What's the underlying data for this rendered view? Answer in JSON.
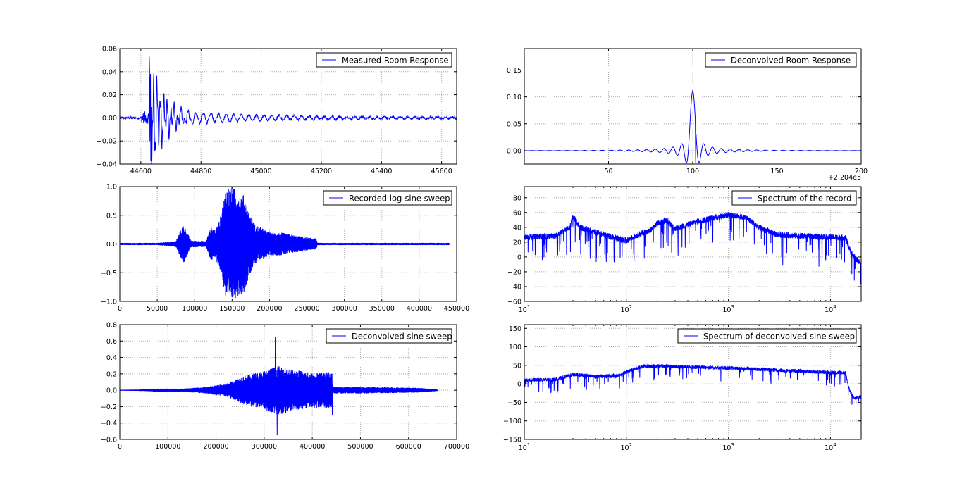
{
  "figure": {
    "background": "#ffffff",
    "line_color": "#0000ff",
    "grid_color": "#b0b0b0"
  },
  "chart_data": [
    {
      "id": "measured-room-response",
      "type": "line",
      "xscale": "linear",
      "title": "",
      "xlabel": "",
      "ylabel": "",
      "xlim": [
        44530,
        45650
      ],
      "ylim": [
        -0.04,
        0.06
      ],
      "xticks": [
        44600,
        44800,
        45000,
        45200,
        45400,
        45600
      ],
      "xtick_labels": [
        "44600",
        "44800",
        "45000",
        "45200",
        "45400",
        "45600"
      ],
      "yticks": [
        -0.04,
        -0.02,
        0.0,
        0.02,
        0.04,
        0.06
      ],
      "ytick_labels": [
        "−0.04",
        "−0.02",
        "0.00",
        "0.02",
        "0.04",
        "0.06"
      ],
      "grid": true,
      "legend_position": "top-right",
      "series": [
        {
          "name": "Measured Room Response",
          "shape": "room_impulse",
          "t0": 44628,
          "peak": 0.053,
          "trough": -0.037,
          "noise": 0.001
        }
      ]
    },
    {
      "id": "deconvolved-room-response",
      "type": "line",
      "xscale": "linear",
      "title": "",
      "xlabel": "",
      "ylabel": "",
      "x_offset_label": "+2.204e5",
      "xlim": [
        0,
        200
      ],
      "ylim": [
        -0.025,
        0.19
      ],
      "xticks": [
        50,
        100,
        150,
        200
      ],
      "xtick_labels": [
        "50",
        "100",
        "150",
        "200"
      ],
      "yticks": [
        0.0,
        0.05,
        0.1,
        0.15
      ],
      "ytick_labels": [
        "0.00",
        "0.05",
        "0.10",
        "0.15"
      ],
      "grid": true,
      "legend_position": "top-right",
      "series": [
        {
          "name": "Deconvolved Room Response",
          "shape": "sinc",
          "center": 100,
          "peak": 0.112,
          "trough": -0.022
        }
      ]
    },
    {
      "id": "recorded-log-sine-sweep",
      "type": "line",
      "xscale": "linear",
      "title": "",
      "xlabel": "",
      "ylabel": "",
      "xlim": [
        0,
        450000
      ],
      "ylim": [
        -1.0,
        1.0
      ],
      "xticks": [
        0,
        50000,
        100000,
        150000,
        200000,
        250000,
        300000,
        350000,
        400000,
        450000
      ],
      "xtick_labels": [
        "0",
        "50000",
        "100000",
        "150000",
        "200000",
        "250000",
        "300000",
        "350000",
        "400000",
        "450000"
      ],
      "yticks": [
        -1.0,
        -0.5,
        0.0,
        0.5,
        1.0
      ],
      "ytick_labels": [
        "−1.0",
        "−0.5",
        "0.0",
        "0.5",
        "1.0"
      ],
      "grid": true,
      "legend_position": "top-right",
      "series": [
        {
          "name": "Recorded log-sine sweep",
          "shape": "envelope",
          "envelope": [
            [
              0,
              0.02
            ],
            [
              50000,
              0.02
            ],
            [
              75000,
              0.05
            ],
            [
              85000,
              0.35
            ],
            [
              95000,
              0.06
            ],
            [
              115000,
              0.05
            ],
            [
              122000,
              0.3
            ],
            [
              128000,
              0.25
            ],
            [
              135000,
              0.5
            ],
            [
              142000,
              1.0
            ],
            [
              150000,
              1.0
            ],
            [
              158000,
              0.9
            ],
            [
              166000,
              0.85
            ],
            [
              173000,
              0.55
            ],
            [
              180000,
              0.35
            ],
            [
              200000,
              0.2
            ],
            [
              215000,
              0.2
            ],
            [
              245000,
              0.12
            ],
            [
              262000,
              0.1
            ],
            [
              264000,
              0.02
            ],
            [
              440000,
              0.02
            ]
          ]
        }
      ]
    },
    {
      "id": "spectrum-of-the-record",
      "type": "line",
      "xscale": "log",
      "title": "",
      "xlabel": "",
      "ylabel": "",
      "xlim": [
        10,
        20000
      ],
      "ylim": [
        -60,
        95
      ],
      "xticks": [
        10,
        100,
        1000,
        10000
      ],
      "xtick_labels": [
        [
          "10",
          "1"
        ],
        [
          "10",
          "2"
        ],
        [
          "10",
          "3"
        ],
        [
          "10",
          "4"
        ]
      ],
      "yticks": [
        -60,
        -40,
        -20,
        0,
        20,
        40,
        60,
        80
      ],
      "ytick_labels": [
        "−60",
        "−40",
        "−20",
        "0",
        "20",
        "40",
        "60",
        "80"
      ],
      "grid": true,
      "legend_position": "top-right",
      "series": [
        {
          "name": "Spectrum of the record",
          "shape": "spectrum",
          "envelope": [
            [
              10,
              27
            ],
            [
              20,
              28
            ],
            [
              28,
              40
            ],
            [
              30,
              55
            ],
            [
              35,
              40
            ],
            [
              60,
              30
            ],
            [
              100,
              22
            ],
            [
              140,
              32
            ],
            [
              170,
              35
            ],
            [
              200,
              45
            ],
            [
              250,
              50
            ],
            [
              300,
              38
            ],
            [
              500,
              48
            ],
            [
              1000,
              57
            ],
            [
              1500,
              53
            ],
            [
              2000,
              40
            ],
            [
              3000,
              30
            ],
            [
              6000,
              28
            ],
            [
              14000,
              26
            ],
            [
              16000,
              5
            ],
            [
              20000,
              -10
            ]
          ],
          "spread": 8
        }
      ]
    },
    {
      "id": "deconvolved-sine-sweep",
      "type": "line",
      "xscale": "linear",
      "title": "",
      "xlabel": "",
      "ylabel": "",
      "xlim": [
        0,
        700000
      ],
      "ylim": [
        -0.6,
        0.8
      ],
      "xticks": [
        0,
        100000,
        200000,
        300000,
        400000,
        500000,
        600000,
        700000
      ],
      "xtick_labels": [
        "0",
        "100000",
        "200000",
        "300000",
        "400000",
        "500000",
        "600000",
        "700000"
      ],
      "yticks": [
        -0.6,
        -0.4,
        -0.2,
        0.0,
        0.2,
        0.4,
        0.6,
        0.8
      ],
      "ytick_labels": [
        "−0.6",
        "−0.4",
        "−0.2",
        "0.0",
        "0.2",
        "0.4",
        "0.6",
        "0.8"
      ],
      "grid": true,
      "legend_position": "top-right",
      "series": [
        {
          "name": "Deconvolved sine sweep",
          "shape": "envelope",
          "envelope": [
            [
              0,
              0.005
            ],
            [
              50000,
              0.01
            ],
            [
              80000,
              0.02
            ],
            [
              130000,
              0.02
            ],
            [
              180000,
              0.04
            ],
            [
              220000,
              0.08
            ],
            [
              260000,
              0.18
            ],
            [
              300000,
              0.24
            ],
            [
              330000,
              0.3
            ],
            [
              360000,
              0.25
            ],
            [
              400000,
              0.22
            ],
            [
              441000,
              0.22
            ],
            [
              442000,
              0.04
            ],
            [
              500000,
              0.04
            ],
            [
              620000,
              0.03
            ],
            [
              660000,
              0.01
            ]
          ],
          "spikes": [
            [
              323000,
              0.65
            ],
            [
              327000,
              -0.55
            ],
            [
              441000,
              0.2
            ],
            [
              441500,
              -0.3
            ]
          ]
        }
      ]
    },
    {
      "id": "spectrum-of-deconvolved-sine-sweep",
      "type": "line",
      "xscale": "log",
      "title": "",
      "xlabel": "",
      "ylabel": "",
      "xlim": [
        10,
        20000
      ],
      "ylim": [
        -150,
        160
      ],
      "xticks": [
        10,
        100,
        1000,
        10000
      ],
      "xtick_labels": [
        [
          "10",
          "1"
        ],
        [
          "10",
          "2"
        ],
        [
          "10",
          "3"
        ],
        [
          "10",
          "4"
        ]
      ],
      "yticks": [
        -150,
        -100,
        -50,
        0,
        50,
        100,
        150
      ],
      "ytick_labels": [
        "−150",
        "−100",
        "−50",
        "0",
        "50",
        "100",
        "150"
      ],
      "grid": true,
      "legend_position": "top-right",
      "series": [
        {
          "name": "Spectrum of deconvolved sine sweep",
          "shape": "spectrum",
          "envelope": [
            [
              10,
              10
            ],
            [
              20,
              12
            ],
            [
              30,
              25
            ],
            [
              50,
              20
            ],
            [
              80,
              22
            ],
            [
              120,
              40
            ],
            [
              150,
              48
            ],
            [
              200,
              48
            ],
            [
              400,
              46
            ],
            [
              1000,
              43
            ],
            [
              3000,
              37
            ],
            [
              8000,
              32
            ],
            [
              14000,
              30
            ],
            [
              15500,
              -20
            ],
            [
              17000,
              -40
            ],
            [
              20000,
              -35
            ]
          ],
          "spread": 10
        }
      ]
    }
  ]
}
